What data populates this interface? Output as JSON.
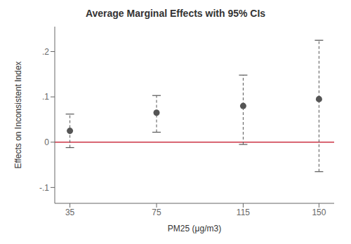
{
  "chart_data": {
    "type": "scatter",
    "title": "Average Marginal Effects with 95% CIs",
    "xlabel": "PM25 (μg/m3)",
    "ylabel": "Effects on Inconsistent Index",
    "x": [
      35,
      75,
      115,
      150
    ],
    "values": [
      0.025,
      0.065,
      0.08,
      0.095
    ],
    "ci_upper": [
      0.062,
      0.103,
      0.148,
      0.225
    ],
    "ci_lower": [
      -0.012,
      0.022,
      -0.005,
      -0.065
    ],
    "xlim": [
      28,
      157
    ],
    "ylim": [
      -0.135,
      0.255
    ],
    "xticks": [
      35,
      75,
      115,
      150
    ],
    "yticks": [
      {
        "value": -0.1,
        "label": "-.1"
      },
      0,
      {
        "value": 0.1,
        "label": ".1"
      },
      {
        "value": 0.2,
        "label": ".2"
      }
    ],
    "color": "#555555",
    "reference_line": {
      "y": 0,
      "color": "#cc3344"
    },
    "grid": false
  }
}
